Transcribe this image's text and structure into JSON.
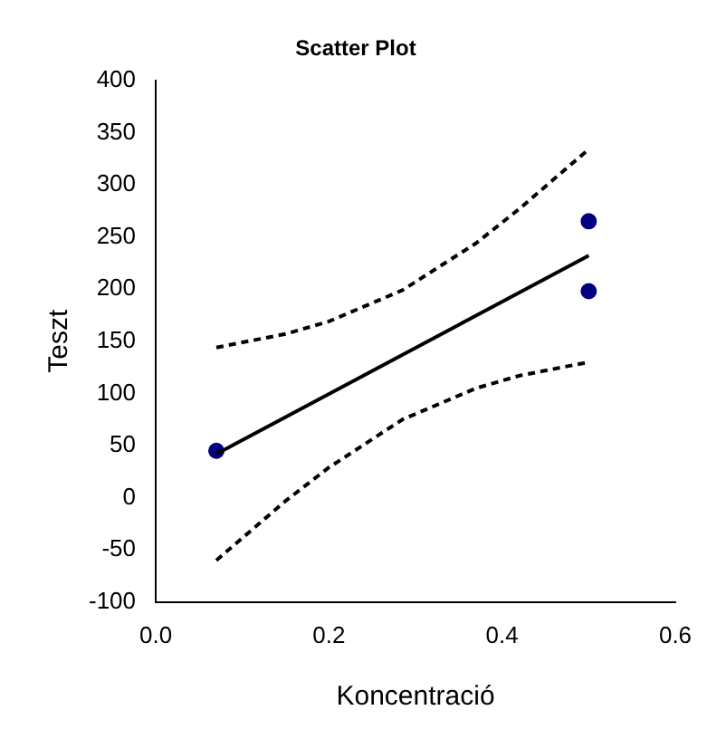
{
  "chart_data": {
    "type": "scatter",
    "title": "Scatter Plot",
    "xlabel": "Koncentració",
    "ylabel": "Teszt",
    "xlim": [
      0,
      0.6
    ],
    "xticks": [
      {
        "value": 0,
        "label": "0.0"
      },
      {
        "value": 0.2,
        "label": "0.2"
      },
      {
        "value": 0.4,
        "label": "0.4"
      },
      {
        "value": 0.6,
        "label": "0.6"
      }
    ],
    "ylim": [
      -100,
      400
    ],
    "yticks": [
      -100,
      -50,
      0,
      50,
      100,
      150,
      200,
      250,
      300,
      350,
      400
    ],
    "grid": false,
    "legend": false,
    "series": [
      {
        "color": "#000080",
        "marker": "circle",
        "x": [
          0.07,
          0.5,
          0.5
        ],
        "values": [
          45,
          265,
          198
        ]
      },
      {
        "type": "line",
        "color": "#000000",
        "line_style": "solid",
        "marker": "none",
        "x": [
          0.07,
          0.5
        ],
        "values": [
          42,
          232
        ]
      },
      {
        "type": "line",
        "color": "#000000",
        "line_style": "dashed",
        "marker": "none",
        "x": [
          0.07,
          0.15,
          0.2,
          0.285,
          0.37,
          0.42,
          0.5
        ],
        "values": [
          144,
          157,
          169,
          199,
          244,
          277,
          334
        ]
      },
      {
        "type": "line",
        "color": "#000000",
        "line_style": "dashed",
        "marker": "none",
        "x": [
          0.07,
          0.15,
          0.2,
          0.285,
          0.37,
          0.42,
          0.5
        ],
        "values": [
          -60,
          -3,
          29,
          75,
          105,
          117,
          130
        ]
      }
    ]
  }
}
